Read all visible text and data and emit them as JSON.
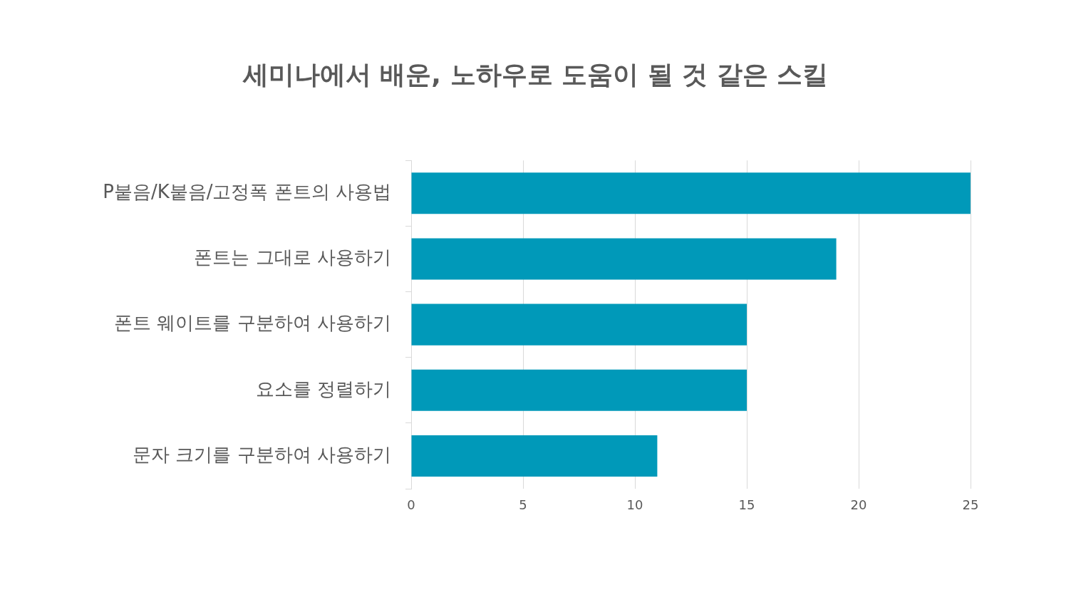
{
  "chart_data": {
    "type": "bar",
    "orientation": "horizontal",
    "title": "세미나에서 배운, 노하우로 도움이 될 것 같은 스킬",
    "categories": [
      "P붙음/K붙음/고정폭 폰트의 사용법",
      "폰트는 그대로 사용하기",
      "폰트 웨이트를 구분하여 사용하기",
      "요소를 정렬하기",
      "문자 크기를 구분하여 사용하기"
    ],
    "values": [
      25,
      19,
      15,
      15,
      11
    ],
    "color": "#0099b9",
    "xlim": [
      0,
      25
    ],
    "xticks": [
      0,
      5,
      10,
      15,
      20,
      25
    ],
    "grid": "x"
  }
}
